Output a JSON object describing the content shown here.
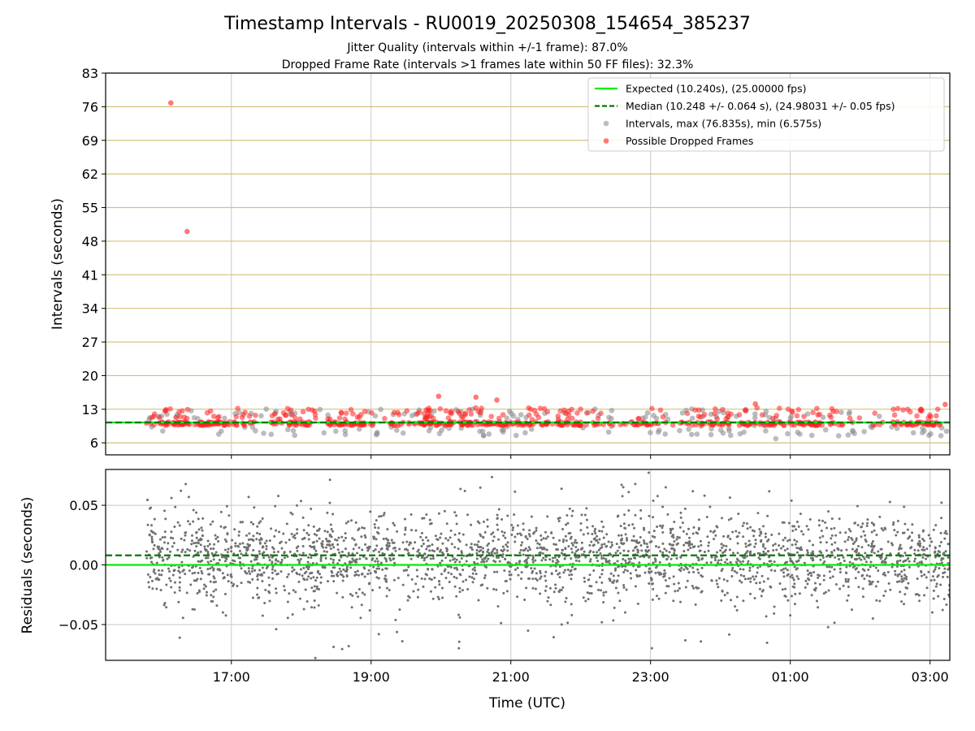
{
  "figure": {
    "title": "Timestamp Intervals - RU0019_20250308_154654_385237",
    "subtitle_1": "Jitter Quality (intervals within +/-1 frame): 87.0%",
    "subtitle_2": "Dropped Frame Rate (intervals >1 frames late within 50 FF files): 32.3%"
  },
  "colors": {
    "expected": "#00ee00",
    "median": "#007a00",
    "intervals": "#909090",
    "dropped": "#ff2020",
    "residuals": "#707070",
    "hgrid_top": "#d4c17a",
    "grid": "#c8c8c8"
  },
  "chart_data": [
    {
      "type": "scatter",
      "panel": "intervals",
      "xlabel": "",
      "ylabel": "Intervals (seconds)",
      "x_range": [
        "15:12",
        "03:17"
      ],
      "x_ticks": [
        "17:00",
        "19:00",
        "21:00",
        "23:00",
        "01:00",
        "03:00"
      ],
      "ylim": [
        3.5,
        83
      ],
      "y_ticks": [
        6,
        13,
        20,
        27,
        34,
        41,
        48,
        55,
        62,
        69,
        76,
        83
      ],
      "grid": "vertical lines + colored horizontal lines",
      "legend_position": "top-right",
      "legend": [
        {
          "label": "Expected (10.240s), (25.00000 fps)",
          "style": "solid-line",
          "color": "#00ee00"
        },
        {
          "label": "Median (10.248 +/- 0.064 s), (24.98031 +/- 0.05 fps)",
          "style": "dashed-line",
          "color": "#007a00"
        },
        {
          "label": "Intervals, max (76.835s), min (6.575s)",
          "style": "marker",
          "color": "#909090"
        },
        {
          "label": "Possible Dropped Frames",
          "style": "marker",
          "color": "#ff2020"
        }
      ],
      "series": [
        {
          "name": "Expected (10.240s), (25.00000 fps)",
          "kind": "hline",
          "y": 10.24
        },
        {
          "name": "Median (10.248 +/- 0.064 s), (24.98031 +/- 0.05 fps)",
          "kind": "hline",
          "y": 10.248
        },
        {
          "name": "Intervals, max (76.835s), min (6.575s)",
          "kind": "scatter",
          "x_start": "15:47",
          "x_end": "03:17",
          "typical_y": 10.25,
          "max": 76.835,
          "min": 6.575
        },
        {
          "name": "Possible Dropped Frames",
          "kind": "scatter",
          "outliers": [
            {
              "x": "16:08",
              "y": 76.8
            },
            {
              "x": "16:22",
              "y": 50.0
            },
            {
              "x": "19:58",
              "y": 15.7
            },
            {
              "x": "20:30",
              "y": 15.5
            },
            {
              "x": "20:48",
              "y": 14.9
            },
            {
              "x": "00:30",
              "y": 14.1
            },
            {
              "x": "03:13",
              "y": 14.0
            }
          ]
        }
      ]
    },
    {
      "type": "scatter",
      "panel": "residuals",
      "xlabel": "Time (UTC)",
      "ylabel": "Residuals (seconds)",
      "x_range": [
        "15:12",
        "03:17"
      ],
      "x_ticks": [
        "17:00",
        "19:00",
        "21:00",
        "23:00",
        "01:00",
        "03:00"
      ],
      "ylim": [
        -0.08,
        0.08
      ],
      "y_ticks": [
        -0.05,
        0.0,
        0.05
      ],
      "y_tick_labels": [
        "−0.05",
        "0.00",
        "0.05"
      ],
      "grid": true,
      "series": [
        {
          "name": "expected-zero",
          "kind": "hline",
          "y": 0.0
        },
        {
          "name": "median-offset",
          "kind": "hline",
          "y": 0.008
        },
        {
          "name": "residuals",
          "kind": "scatter",
          "x_start": "15:47",
          "x_end": "03:17",
          "spread_sd": 0.018
        }
      ]
    }
  ]
}
